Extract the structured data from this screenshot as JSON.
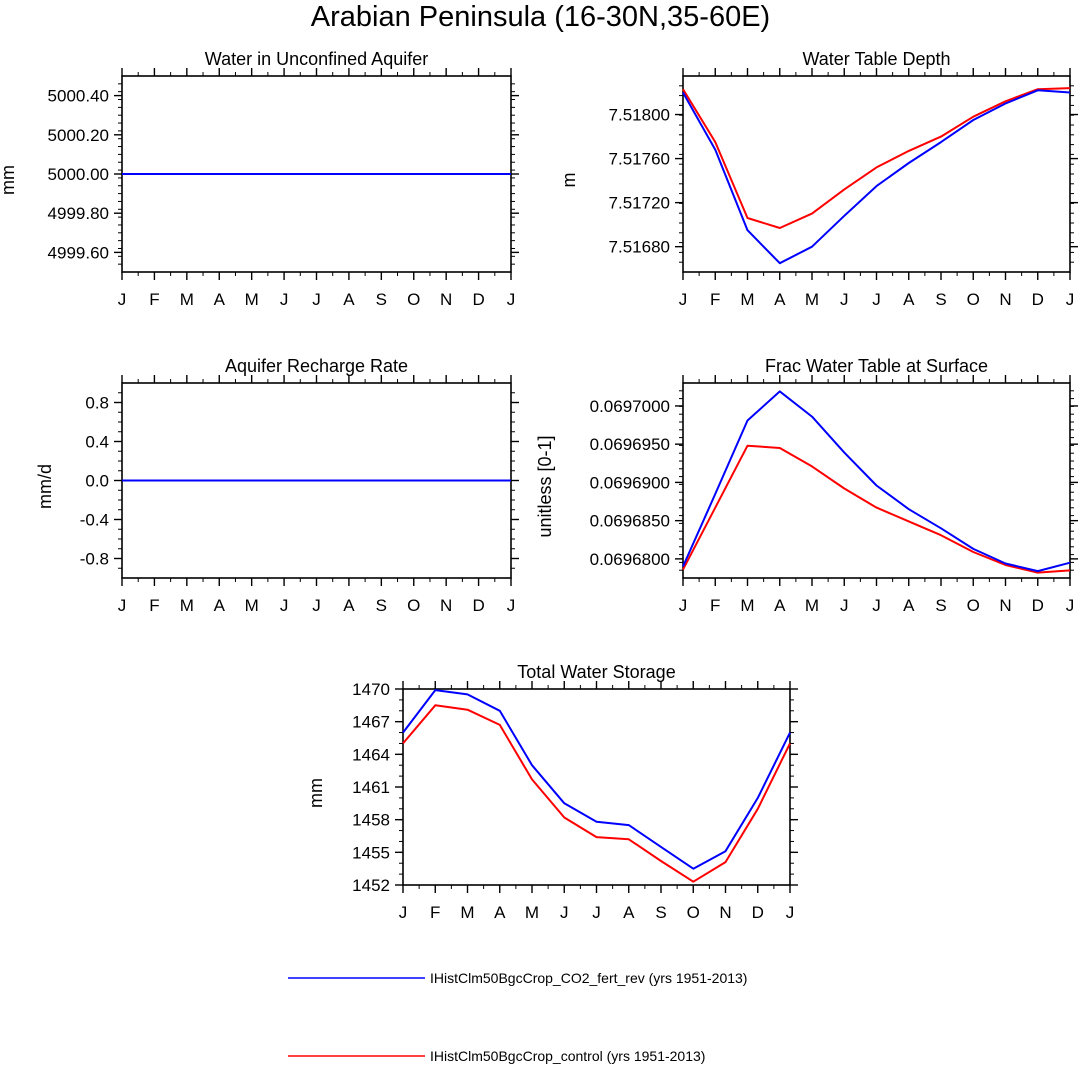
{
  "title": "Arabian Peninsula (16-30N,35-60E)",
  "colors": {
    "series1": "#0000ff",
    "series2": "#ff0000"
  },
  "legend": {
    "placement": "bottom",
    "entries": [
      {
        "label": "IHistClm50BgcCrop_CO2_fert_rev (yrs 1951-2013)",
        "color": "#0000ff"
      },
      {
        "label": "IHistClm50BgcCrop_control (yrs 1951-2013)",
        "color": "#ff0000"
      }
    ]
  },
  "chart_data": [
    {
      "type": "line",
      "title": "Water in Unconfined Aquifer",
      "ylabel": "mm",
      "categories": [
        "J",
        "F",
        "M",
        "A",
        "M",
        "J",
        "J",
        "A",
        "S",
        "O",
        "N",
        "D",
        "J"
      ],
      "ylim": [
        4999.5,
        5000.5
      ],
      "yticks": [
        "5000.40",
        "5000.20",
        "5000.00",
        "4999.80",
        "4999.60"
      ],
      "series": [
        {
          "name": "IHistClm50BgcCrop_CO2_fert_rev (yrs 1951-2013)",
          "color": "#0000ff",
          "values": [
            5000.0,
            5000.0,
            5000.0,
            5000.0,
            5000.0,
            5000.0,
            5000.0,
            5000.0,
            5000.0,
            5000.0,
            5000.0,
            5000.0,
            5000.0
          ]
        },
        {
          "name": "IHistClm50BgcCrop_control (yrs 1951-2013)",
          "color": "#ff0000",
          "values": [
            5000.0,
            5000.0,
            5000.0,
            5000.0,
            5000.0,
            5000.0,
            5000.0,
            5000.0,
            5000.0,
            5000.0,
            5000.0,
            5000.0,
            5000.0
          ]
        }
      ]
    },
    {
      "type": "line",
      "title": "Water Table Depth",
      "ylabel": "m",
      "categories": [
        "J",
        "F",
        "M",
        "A",
        "M",
        "J",
        "J",
        "A",
        "S",
        "O",
        "N",
        "D",
        "J"
      ],
      "ylim": [
        7.51657,
        7.51835
      ],
      "yticks": [
        "7.51800",
        "7.51760",
        "7.51720",
        "7.51680"
      ],
      "series": [
        {
          "name": "IHistClm50BgcCrop_CO2_fert_rev (yrs 1951-2013)",
          "color": "#0000ff",
          "values": [
            7.5182,
            7.51768,
            7.51695,
            7.51665,
            7.5168,
            7.51708,
            7.51735,
            7.51756,
            7.51775,
            7.51795,
            7.5181,
            7.51822,
            7.5182
          ]
        },
        {
          "name": "IHistClm50BgcCrop_control (yrs 1951-2013)",
          "color": "#ff0000",
          "values": [
            7.51823,
            7.51775,
            7.51706,
            7.51697,
            7.5171,
            7.51732,
            7.51752,
            7.51767,
            7.5178,
            7.51798,
            7.51812,
            7.51823,
            7.51824
          ]
        }
      ]
    },
    {
      "type": "line",
      "title": "Aquifer Recharge Rate",
      "ylabel": "mm/d",
      "categories": [
        "J",
        "F",
        "M",
        "A",
        "M",
        "J",
        "J",
        "A",
        "S",
        "O",
        "N",
        "D",
        "J"
      ],
      "ylim": [
        -1,
        1
      ],
      "yticks": [
        "0.8",
        "0.4",
        "0.0",
        "-0.4",
        "-0.8"
      ],
      "series": [
        {
          "name": "IHistClm50BgcCrop_CO2_fert_rev (yrs 1951-2013)",
          "color": "#0000ff",
          "values": [
            0,
            0,
            0,
            0,
            0,
            0,
            0,
            0,
            0,
            0,
            0,
            0,
            0
          ]
        },
        {
          "name": "IHistClm50BgcCrop_control (yrs 1951-2013)",
          "color": "#ff0000",
          "values": [
            0,
            0,
            0,
            0,
            0,
            0,
            0,
            0,
            0,
            0,
            0,
            0,
            0
          ]
        }
      ]
    },
    {
      "type": "line",
      "title": "Frac Water Table at Surface",
      "ylabel": "unitless [0-1]",
      "categories": [
        "J",
        "F",
        "M",
        "A",
        "M",
        "J",
        "J",
        "A",
        "S",
        "O",
        "N",
        "D",
        "J"
      ],
      "ylim": [
        0.0696775,
        0.069703
      ],
      "yticks": [
        "0.0697000",
        "0.0696950",
        "0.0696900",
        "0.0696850",
        "0.0696800"
      ],
      "series": [
        {
          "name": "IHistClm50BgcCrop_CO2_fert_rev (yrs 1951-2013)",
          "color": "#0000ff",
          "values": [
            0.069679,
            0.0696885,
            0.0696981,
            0.0697019,
            0.0696986,
            0.0696939,
            0.0696896,
            0.0696865,
            0.069684,
            0.0696813,
            0.0696794,
            0.0696784,
            0.0696795
          ]
        },
        {
          "name": "IHistClm50BgcCrop_control (yrs 1951-2013)",
          "color": "#ff0000",
          "values": [
            0.0696786,
            0.0696867,
            0.0696948,
            0.0696945,
            0.0696921,
            0.0696892,
            0.0696867,
            0.0696849,
            0.0696831,
            0.0696809,
            0.0696792,
            0.0696782,
            0.0696785
          ]
        }
      ]
    },
    {
      "type": "line",
      "title": "Total Water Storage",
      "ylabel": "mm",
      "categories": [
        "J",
        "F",
        "M",
        "A",
        "M",
        "J",
        "J",
        "A",
        "S",
        "O",
        "N",
        "D",
        "J"
      ],
      "ylim": [
        1452,
        1470
      ],
      "yticks": [
        "1470",
        "1467",
        "1464",
        "1461",
        "1458",
        "1455",
        "1452"
      ],
      "series": [
        {
          "name": "IHistClm50BgcCrop_CO2_fert_rev (yrs 1951-2013)",
          "color": "#0000ff",
          "values": [
            1466.0,
            1469.9,
            1469.5,
            1468.0,
            1463.0,
            1459.5,
            1457.8,
            1457.5,
            1455.5,
            1453.5,
            1455.1,
            1460.0,
            1466.0
          ]
        },
        {
          "name": "IHistClm50BgcCrop_control (yrs 1951-2013)",
          "color": "#ff0000",
          "values": [
            1465.0,
            1468.5,
            1468.1,
            1466.7,
            1461.7,
            1458.2,
            1456.4,
            1456.2,
            1454.2,
            1452.3,
            1454.1,
            1459.0,
            1465.0
          ]
        }
      ]
    }
  ]
}
